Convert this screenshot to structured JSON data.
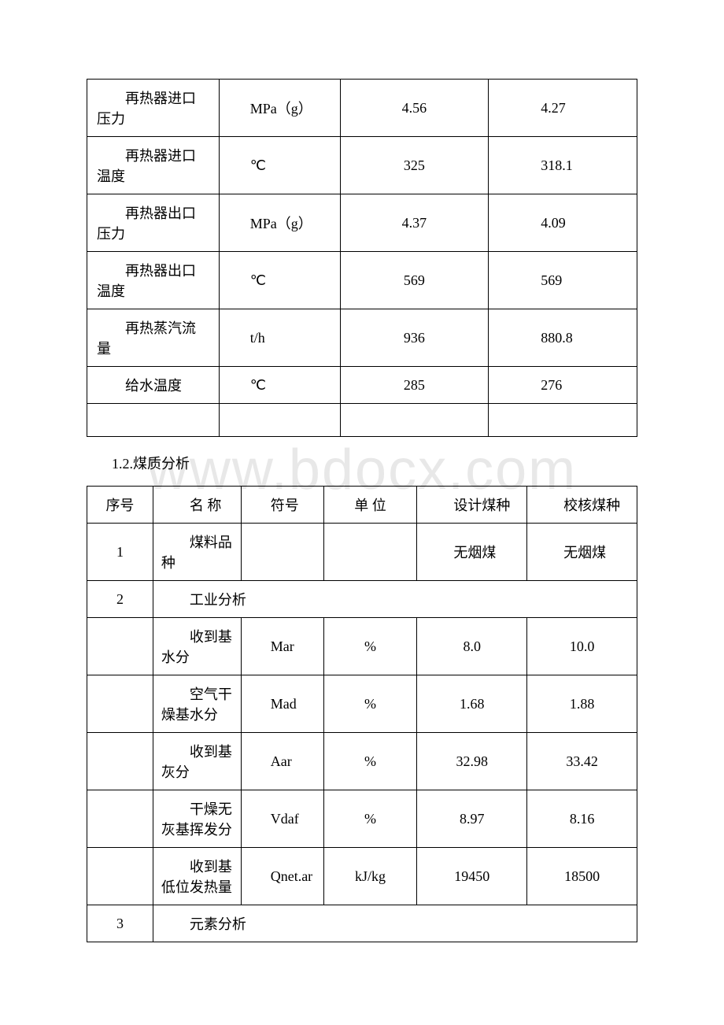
{
  "watermark_text": "www.bdocx.com",
  "table1": {
    "rows": [
      {
        "label": "再热器进口压力",
        "unit": "MPa（g）",
        "v1": "4.56",
        "v2": "4.27"
      },
      {
        "label": "再热器进口温度",
        "unit": "℃",
        "v1": "325",
        "v2": "318.1"
      },
      {
        "label": "再热器出口压力",
        "unit": "MPa（g）",
        "v1": "4.37",
        "v2": "4.09"
      },
      {
        "label": "再热器出口温度",
        "unit": "℃",
        "v1": "569",
        "v2": "569"
      },
      {
        "label": "再热蒸汽流量",
        "unit": "t/h",
        "v1": "936",
        "v2": "880.8"
      },
      {
        "label": "给水温度",
        "unit": "℃",
        "v1": "285",
        "v2": "276"
      }
    ],
    "style": {
      "border_color": "#000000",
      "font_family": "SimSun",
      "font_size": 18
    }
  },
  "section_title": "1.2.煤质分析",
  "table2": {
    "headers": {
      "seq": "序号",
      "name": "名 称",
      "symbol": "符号",
      "unit": "单 位",
      "design": "设计煤种",
      "check": "校核煤种"
    },
    "rows": [
      {
        "seq": "1",
        "name": "煤料品种",
        "symbol": "",
        "unit": "",
        "design": "无烟煤",
        "check": "无烟煤"
      },
      {
        "seq": "2",
        "section": "工业分析"
      },
      {
        "seq": "",
        "name": "收到基水分",
        "symbol": "Mar",
        "unit": "%",
        "design": "8.0",
        "check": "10.0"
      },
      {
        "seq": "",
        "name": "空气干燥基水分",
        "symbol": "Mad",
        "unit": "%",
        "design": "1.68",
        "check": "1.88"
      },
      {
        "seq": "",
        "name": "收到基灰分",
        "symbol": "Aar",
        "unit": "%",
        "design": "32.98",
        "check": "33.42"
      },
      {
        "seq": "",
        "name": "干燥无灰基挥发分",
        "symbol": "Vdaf",
        "unit": "%",
        "design": "8.97",
        "check": "8.16"
      },
      {
        "seq": "",
        "name": "收到基低位发热量",
        "symbol": "Qnet.ar",
        "unit": "kJ/kg",
        "design": "19450",
        "check": "18500"
      },
      {
        "seq": "3",
        "section": "元素分析"
      }
    ],
    "style": {
      "border_color": "#000000",
      "font_family": "SimSun",
      "font_size": 18
    }
  }
}
